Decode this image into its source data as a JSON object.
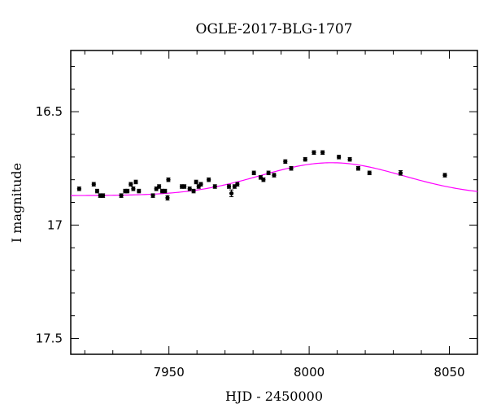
{
  "chart_data": {
    "type": "scatter",
    "title": "OGLE-2017-BLG-1707",
    "xlabel": "HJD - 2450000",
    "ylabel": "I magnitude",
    "xlim": [
      7915,
      8060
    ],
    "ylim": [
      17.57,
      16.23
    ],
    "y_inverted": true,
    "grid": false,
    "x_ticks": [
      {
        "value": 7950,
        "label": "7950"
      },
      {
        "value": 8000,
        "label": "8000"
      },
      {
        "value": 8050,
        "label": "8050"
      }
    ],
    "y_ticks": [
      {
        "value": 16.5,
        "label": "16.5"
      },
      {
        "value": 17.0,
        "label": "17"
      },
      {
        "value": 17.5,
        "label": "17.5"
      }
    ],
    "colors": {
      "points": "#000000",
      "model": "#ff00ff",
      "frame": "#000000"
    },
    "series": [
      {
        "type": "scatter",
        "points": [
          [
            7918.0,
            16.84,
            0.008
          ],
          [
            7923.2,
            16.82,
            0.008
          ],
          [
            7924.4,
            16.85,
            0.008
          ],
          [
            7925.5,
            16.87,
            0.008
          ],
          [
            7926.5,
            16.87,
            0.008
          ],
          [
            7933.0,
            16.87,
            0.008
          ],
          [
            7934.4,
            16.85,
            0.008
          ],
          [
            7935.2,
            16.85,
            0.008
          ],
          [
            7936.4,
            16.82,
            0.008
          ],
          [
            7937.3,
            16.84,
            0.008
          ],
          [
            7938.2,
            16.81,
            0.008
          ],
          [
            7939.3,
            16.85,
            0.008
          ],
          [
            7944.3,
            16.87,
            0.008
          ],
          [
            7945.5,
            16.84,
            0.008
          ],
          [
            7946.5,
            16.83,
            0.008
          ],
          [
            7947.6,
            16.85,
            0.008
          ],
          [
            7948.6,
            16.85,
            0.008
          ],
          [
            7949.5,
            16.88,
            0.01
          ],
          [
            7949.8,
            16.8,
            0.008
          ],
          [
            7954.6,
            16.83,
            0.008
          ],
          [
            7955.5,
            16.83,
            0.008
          ],
          [
            7957.4,
            16.84,
            0.008
          ],
          [
            7958.8,
            16.85,
            0.008
          ],
          [
            7959.7,
            16.81,
            0.008
          ],
          [
            7960.6,
            16.83,
            0.008
          ],
          [
            7961.4,
            16.82,
            0.008
          ],
          [
            7964.2,
            16.8,
            0.008
          ],
          [
            7966.4,
            16.83,
            0.008
          ],
          [
            7971.4,
            16.83,
            0.008
          ],
          [
            7972.3,
            16.86,
            0.015
          ],
          [
            7973.4,
            16.83,
            0.008
          ],
          [
            7974.4,
            16.82,
            0.008
          ],
          [
            7980.3,
            16.77,
            0.008
          ],
          [
            7982.7,
            16.79,
            0.008
          ],
          [
            7983.7,
            16.8,
            0.008
          ],
          [
            7985.5,
            16.77,
            0.008
          ],
          [
            7987.5,
            16.78,
            0.008
          ],
          [
            7991.5,
            16.72,
            0.008
          ],
          [
            7993.6,
            16.75,
            0.008
          ],
          [
            7998.6,
            16.71,
            0.008
          ],
          [
            8001.7,
            16.68,
            0.008
          ],
          [
            8004.8,
            16.68,
            0.008
          ],
          [
            8010.6,
            16.7,
            0.008
          ],
          [
            8014.5,
            16.71,
            0.008
          ],
          [
            8017.5,
            16.75,
            0.008
          ],
          [
            8021.5,
            16.77,
            0.008
          ],
          [
            8032.6,
            16.77,
            0.01
          ],
          [
            8048.4,
            16.78,
            0.008
          ]
        ]
      },
      {
        "type": "line",
        "model": {
          "baseline": 16.87,
          "peak_mag": 16.725,
          "t0": 8008,
          "width": 36
        }
      }
    ]
  }
}
